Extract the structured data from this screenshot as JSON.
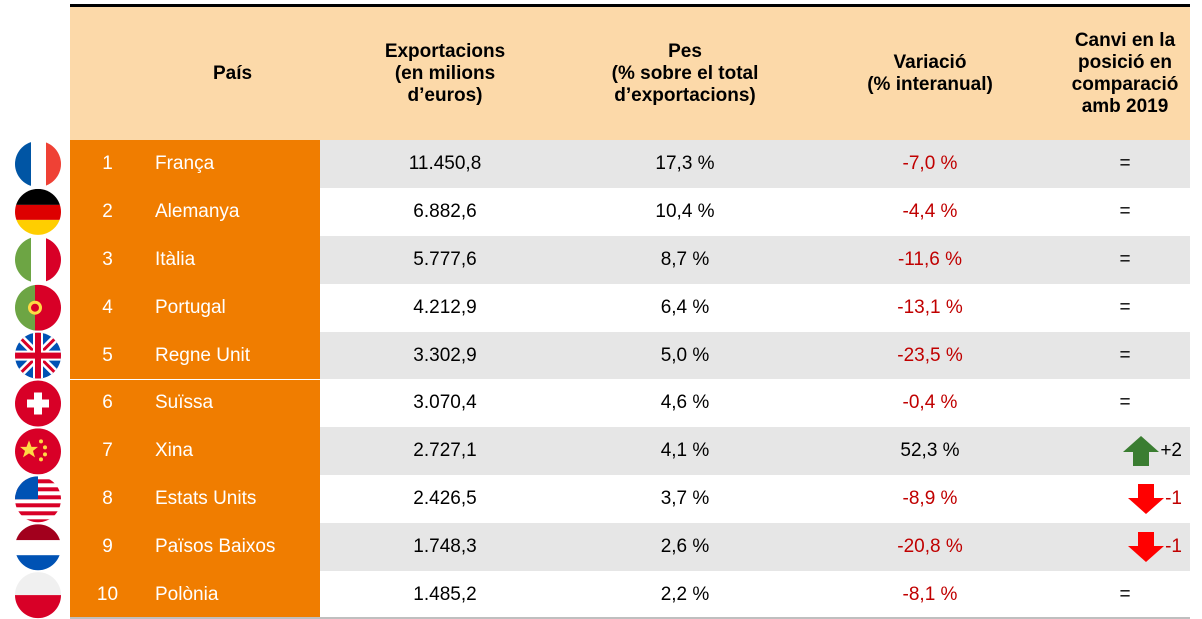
{
  "table": {
    "header": [
      "País",
      "Exportacions\n(en milions\nd’euros)",
      "Pes\n(% sobre el total\nd’exportacions)",
      "Variació\n(% interanual)",
      "Canvi en la\nposició en\ncomparació\namb 2019"
    ],
    "rows": [
      [
        "1",
        "França",
        "11.450,8",
        "17,3 %",
        "-7,0 %",
        "="
      ],
      [
        "2",
        "Alemanya",
        "6.882,6",
        "10,4 %",
        "-4,4 %",
        "="
      ],
      [
        "3",
        "Itàlia",
        "5.777,6",
        "8,7 %",
        "-11,6 %",
        "="
      ],
      [
        "4",
        "Portugal",
        "4.212,9",
        "6,4 %",
        "-13,1 %",
        "="
      ],
      [
        "5",
        "Regne Unit",
        "3.302,9",
        "5,0 %",
        "-23,5 %",
        "="
      ],
      [
        "6",
        "Suïssa",
        "3.070,4",
        "4,6 %",
        "-0,4 %",
        "="
      ],
      [
        "7",
        "Xina",
        "2.727,1",
        "4,1 %",
        "52,3 %",
        "+2"
      ],
      [
        "8",
        "Estats Units",
        "2.426,5",
        "3,7 %",
        "-8,9 %",
        "-1"
      ],
      [
        "9",
        "Països Baixos",
        "1.748,3",
        "2,6 %",
        "-20,8 %",
        "-1"
      ],
      [
        "10",
        "Polònia",
        "1.485,2",
        "2,2 %",
        "-8,1 %",
        "="
      ]
    ]
  }
}
